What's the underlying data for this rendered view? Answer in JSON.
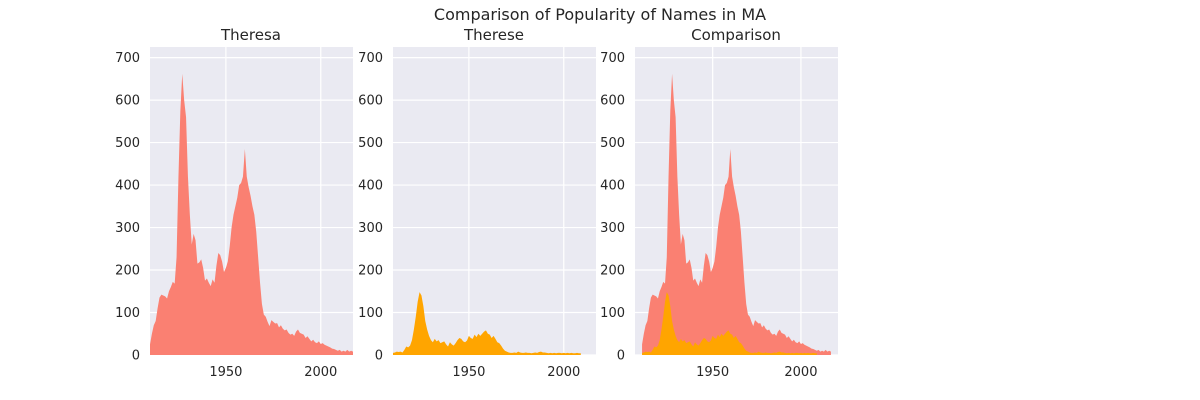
{
  "figure": {
    "title": "Comparison of Popularity of Names in MA"
  },
  "colors": {
    "theresa": "#fa8072",
    "therese": "#ffa500",
    "panel_bg": "#eaeaf2",
    "grid": "#ffffff"
  },
  "chart_data": [
    {
      "type": "area",
      "title": "Theresa",
      "xlim": [
        1910,
        2017
      ],
      "ylim": [
        0,
        725
      ],
      "xticks": [
        1950,
        2000
      ],
      "yticks": [
        0,
        100,
        200,
        300,
        400,
        500,
        600,
        700
      ],
      "grid": true,
      "series": [
        {
          "color": "#fa8072",
          "points": [
            [
              1910,
              25
            ],
            [
              1911,
              50
            ],
            [
              1912,
              70
            ],
            [
              1913,
              80
            ],
            [
              1914,
              110
            ],
            [
              1915,
              135
            ],
            [
              1916,
              142
            ],
            [
              1917,
              140
            ],
            [
              1918,
              138
            ],
            [
              1919,
              133
            ],
            [
              1920,
              150
            ],
            [
              1921,
              160
            ],
            [
              1922,
              172
            ],
            [
              1923,
              168
            ],
            [
              1924,
              230
            ],
            [
              1925,
              420
            ],
            [
              1926,
              575
            ],
            [
              1927,
              662
            ],
            [
              1928,
              600
            ],
            [
              1929,
              560
            ],
            [
              1930,
              420
            ],
            [
              1931,
              330
            ],
            [
              1932,
              260
            ],
            [
              1933,
              285
            ],
            [
              1934,
              270
            ],
            [
              1935,
              215
            ],
            [
              1936,
              218
            ],
            [
              1937,
              225
            ],
            [
              1938,
              205
            ],
            [
              1939,
              175
            ],
            [
              1940,
              180
            ],
            [
              1941,
              170
            ],
            [
              1942,
              162
            ],
            [
              1943,
              178
            ],
            [
              1944,
              170
            ],
            [
              1945,
              210
            ],
            [
              1946,
              240
            ],
            [
              1947,
              235
            ],
            [
              1948,
              220
            ],
            [
              1949,
              195
            ],
            [
              1950,
              205
            ],
            [
              1951,
              220
            ],
            [
              1952,
              255
            ],
            [
              1953,
              300
            ],
            [
              1954,
              330
            ],
            [
              1955,
              350
            ],
            [
              1956,
              370
            ],
            [
              1957,
              400
            ],
            [
              1958,
              405
            ],
            [
              1959,
              420
            ],
            [
              1960,
              485
            ],
            [
              1961,
              420
            ],
            [
              1962,
              395
            ],
            [
              1963,
              375
            ],
            [
              1964,
              350
            ],
            [
              1965,
              330
            ],
            [
              1966,
              290
            ],
            [
              1967,
              230
            ],
            [
              1968,
              170
            ],
            [
              1969,
              120
            ],
            [
              1970,
              95
            ],
            [
              1971,
              90
            ],
            [
              1972,
              78
            ],
            [
              1973,
              68
            ],
            [
              1974,
              82
            ],
            [
              1975,
              78
            ],
            [
              1976,
              74
            ],
            [
              1977,
              75
            ],
            [
              1978,
              65
            ],
            [
              1979,
              70
            ],
            [
              1980,
              62
            ],
            [
              1981,
              58
            ],
            [
              1982,
              60
            ],
            [
              1983,
              52
            ],
            [
              1984,
              48
            ],
            [
              1985,
              50
            ],
            [
              1986,
              45
            ],
            [
              1987,
              55
            ],
            [
              1988,
              60
            ],
            [
              1989,
              52
            ],
            [
              1990,
              50
            ],
            [
              1991,
              48
            ],
            [
              1992,
              40
            ],
            [
              1993,
              44
            ],
            [
              1994,
              38
            ],
            [
              1995,
              32
            ],
            [
              1996,
              36
            ],
            [
              1997,
              30
            ],
            [
              1998,
              28
            ],
            [
              1999,
              32
            ],
            [
              2000,
              26
            ],
            [
              2001,
              28
            ],
            [
              2002,
              24
            ],
            [
              2003,
              22
            ],
            [
              2004,
              20
            ],
            [
              2005,
              18
            ],
            [
              2006,
              15
            ],
            [
              2007,
              14
            ],
            [
              2008,
              12
            ],
            [
              2009,
              10
            ],
            [
              2010,
              12
            ],
            [
              2011,
              8
            ],
            [
              2012,
              10
            ],
            [
              2013,
              8
            ],
            [
              2014,
              12
            ],
            [
              2015,
              8
            ],
            [
              2016,
              10
            ],
            [
              2017,
              8
            ]
          ]
        }
      ]
    },
    {
      "type": "area",
      "title": "Therese",
      "xlim": [
        1910,
        2017
      ],
      "ylim": [
        0,
        725
      ],
      "xticks": [
        1950,
        2000
      ],
      "yticks": [
        0,
        100,
        200,
        300,
        400,
        500,
        600,
        700
      ],
      "grid": true,
      "series": [
        {
          "color": "#ffa500",
          "points": [
            [
              1910,
              5
            ],
            [
              1911,
              6
            ],
            [
              1912,
              8
            ],
            [
              1913,
              7
            ],
            [
              1914,
              8
            ],
            [
              1915,
              6
            ],
            [
              1916,
              12
            ],
            [
              1917,
              20
            ],
            [
              1918,
              18
            ],
            [
              1919,
              22
            ],
            [
              1920,
              35
            ],
            [
              1921,
              60
            ],
            [
              1922,
              90
            ],
            [
              1923,
              125
            ],
            [
              1924,
              148
            ],
            [
              1925,
              140
            ],
            [
              1926,
              115
            ],
            [
              1927,
              80
            ],
            [
              1928,
              60
            ],
            [
              1929,
              45
            ],
            [
              1930,
              35
            ],
            [
              1931,
              30
            ],
            [
              1932,
              38
            ],
            [
              1933,
              32
            ],
            [
              1934,
              35
            ],
            [
              1935,
              28
            ],
            [
              1936,
              30
            ],
            [
              1937,
              32
            ],
            [
              1938,
              25
            ],
            [
              1939,
              20
            ],
            [
              1940,
              30
            ],
            [
              1941,
              25
            ],
            [
              1942,
              22
            ],
            [
              1943,
              28
            ],
            [
              1944,
              35
            ],
            [
              1945,
              40
            ],
            [
              1946,
              38
            ],
            [
              1947,
              32
            ],
            [
              1948,
              30
            ],
            [
              1949,
              34
            ],
            [
              1950,
              45
            ],
            [
              1951,
              40
            ],
            [
              1952,
              38
            ],
            [
              1953,
              48
            ],
            [
              1954,
              42
            ],
            [
              1955,
              50
            ],
            [
              1956,
              45
            ],
            [
              1957,
              50
            ],
            [
              1958,
              55
            ],
            [
              1959,
              58
            ],
            [
              1960,
              50
            ],
            [
              1961,
              48
            ],
            [
              1962,
              40
            ],
            [
              1963,
              45
            ],
            [
              1964,
              38
            ],
            [
              1965,
              30
            ],
            [
              1966,
              28
            ],
            [
              1967,
              22
            ],
            [
              1968,
              15
            ],
            [
              1969,
              10
            ],
            [
              1970,
              8
            ],
            [
              1971,
              6
            ],
            [
              1972,
              5
            ],
            [
              1973,
              5
            ],
            [
              1974,
              6
            ],
            [
              1975,
              5
            ],
            [
              1976,
              8
            ],
            [
              1977,
              6
            ],
            [
              1978,
              5
            ],
            [
              1979,
              5
            ],
            [
              1980,
              6
            ],
            [
              1981,
              5
            ],
            [
              1982,
              5
            ],
            [
              1983,
              4
            ],
            [
              1984,
              5
            ],
            [
              1985,
              6
            ],
            [
              1986,
              5
            ],
            [
              1987,
              7
            ],
            [
              1988,
              8
            ],
            [
              1989,
              6
            ],
            [
              1990,
              6
            ],
            [
              1991,
              5
            ],
            [
              1992,
              4
            ],
            [
              1993,
              5
            ],
            [
              1994,
              4
            ],
            [
              1995,
              5
            ],
            [
              1996,
              4
            ],
            [
              1997,
              5
            ],
            [
              1998,
              5
            ],
            [
              1999,
              4
            ],
            [
              2000,
              5
            ],
            [
              2001,
              4
            ],
            [
              2002,
              5
            ],
            [
              2003,
              4
            ],
            [
              2004,
              5
            ],
            [
              2005,
              4
            ],
            [
              2006,
              4
            ],
            [
              2007,
              5
            ],
            [
              2008,
              4
            ],
            [
              2009,
              4
            ]
          ]
        }
      ]
    },
    {
      "type": "area",
      "title": "Comparison",
      "xlim": [
        1906,
        2021
      ],
      "ylim": [
        0,
        725
      ],
      "xticks": [
        1950,
        2000
      ],
      "yticks": [
        0,
        100,
        200,
        300,
        400,
        500,
        600,
        700
      ],
      "grid": true,
      "series": [
        {
          "color": "#fa8072",
          "source": 0
        },
        {
          "color": "#ffa500",
          "source": 1
        }
      ]
    }
  ]
}
